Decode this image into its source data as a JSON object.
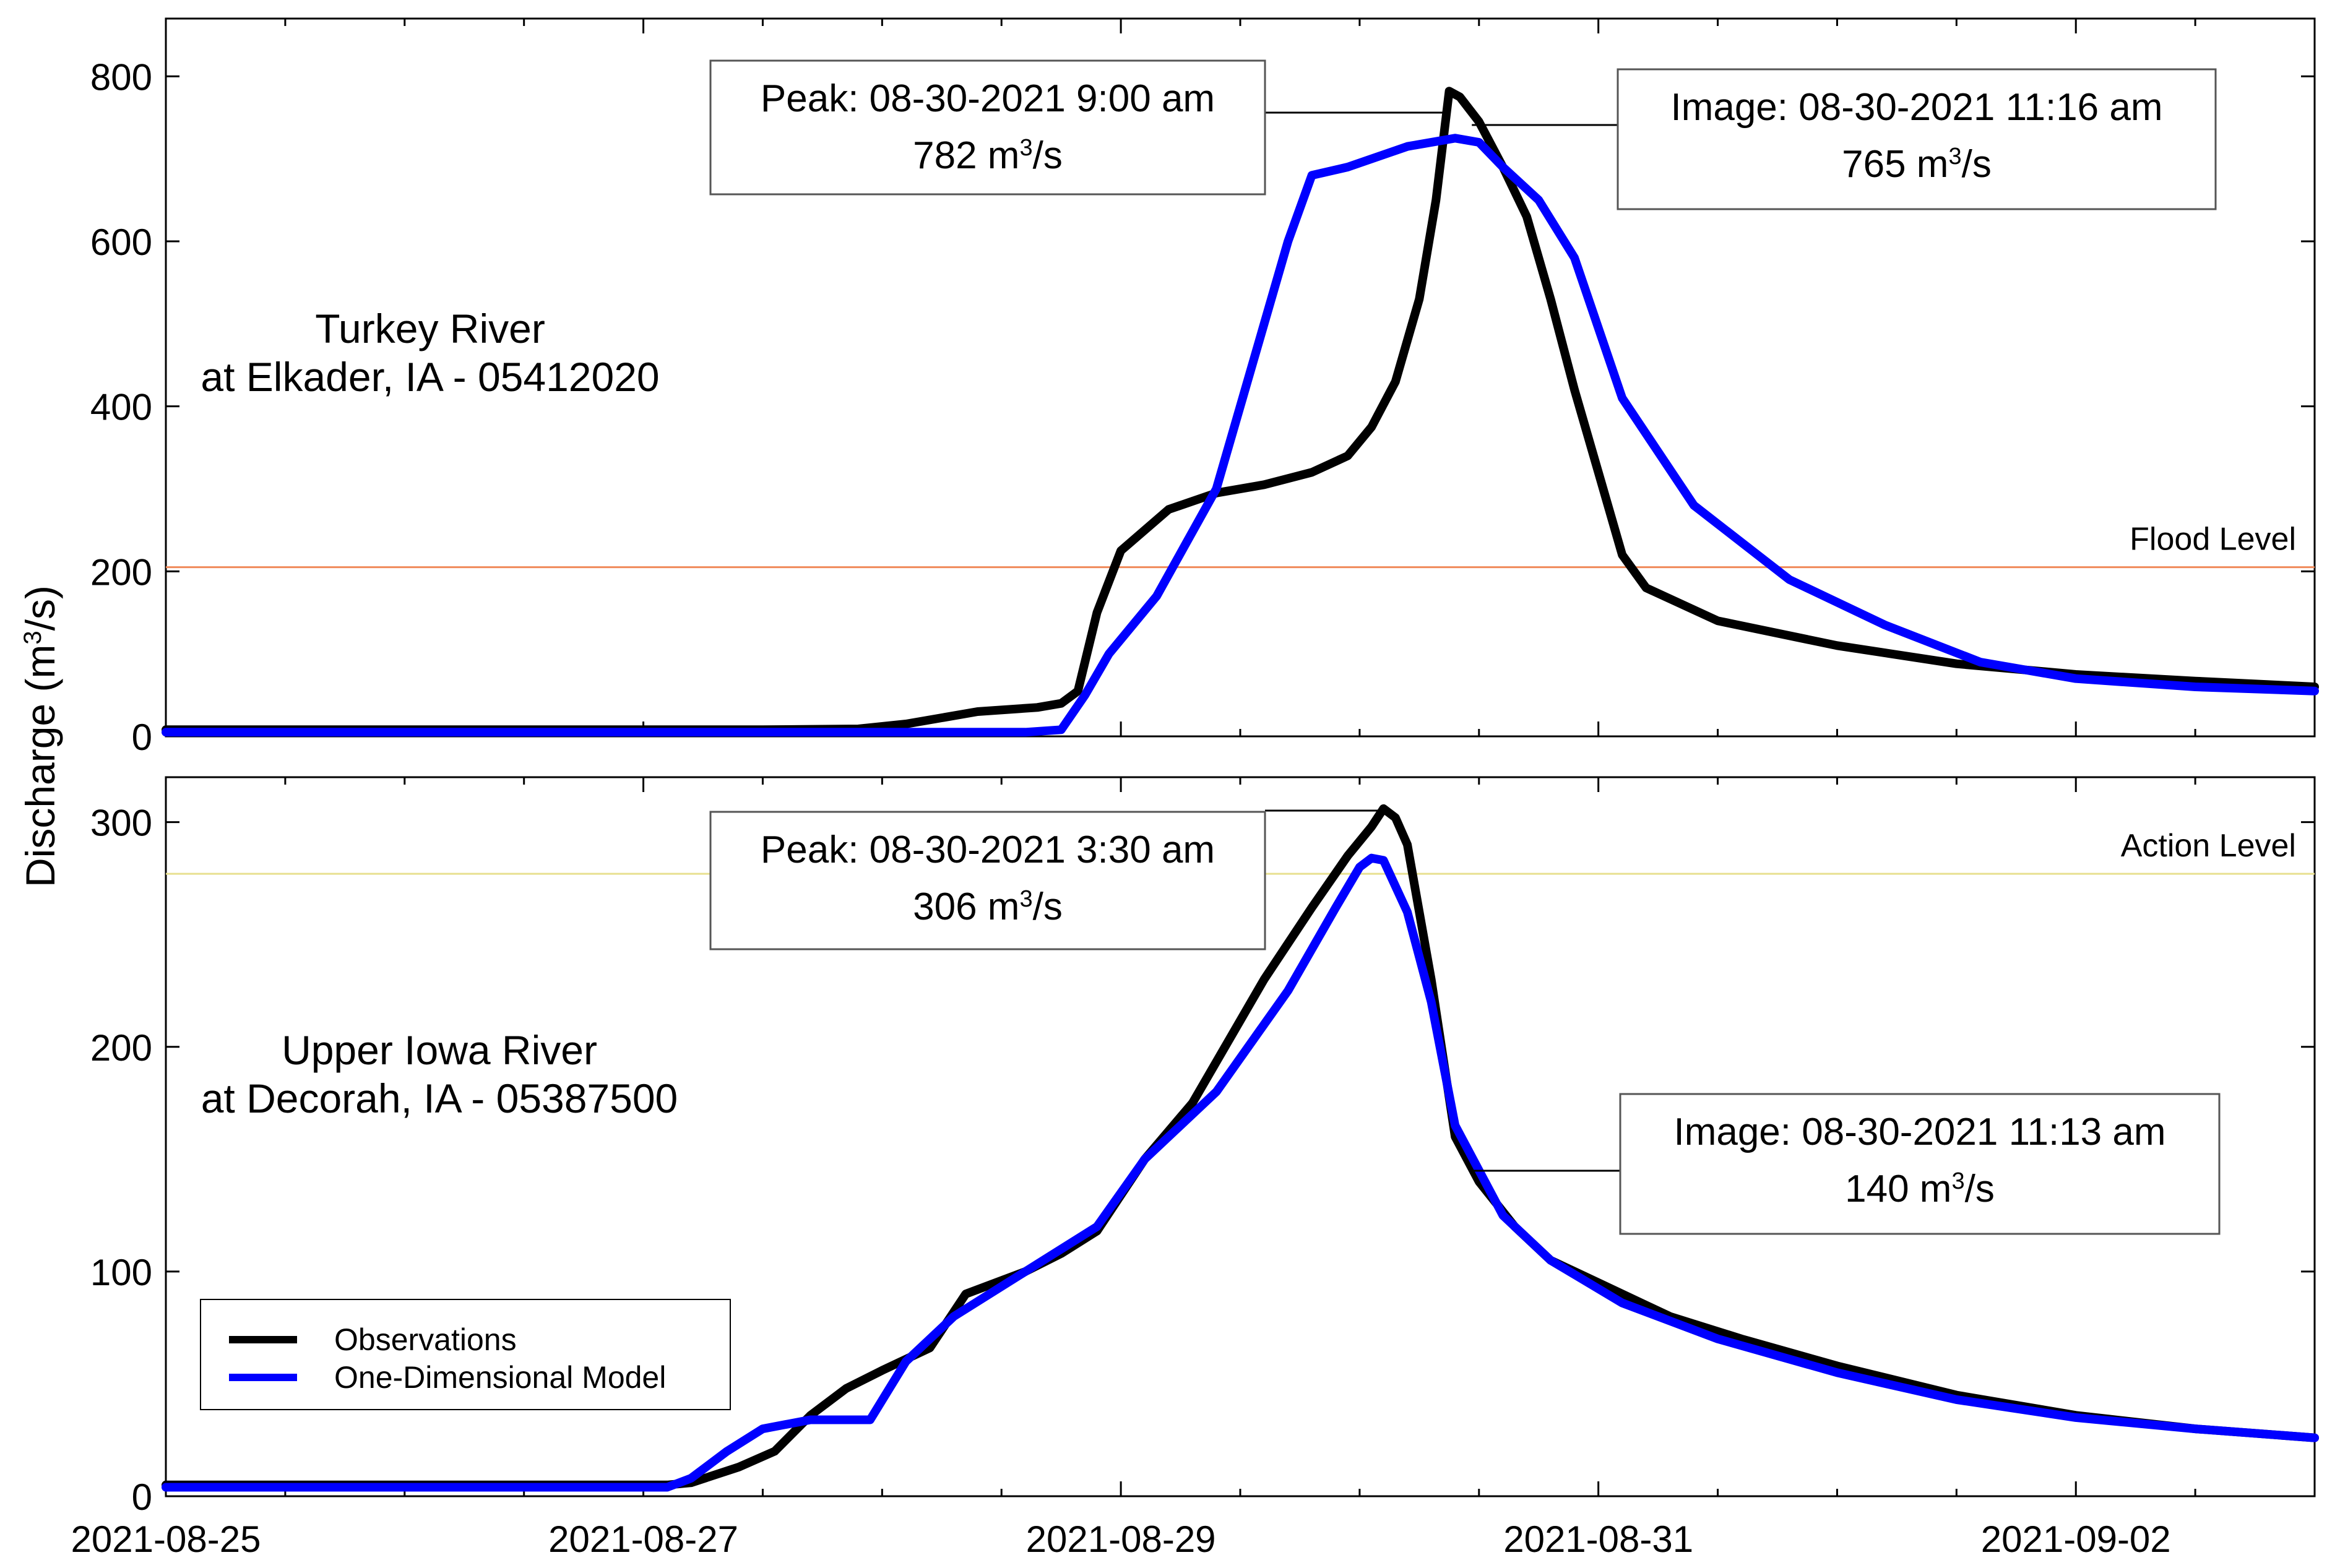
{
  "figure": {
    "ylabel_prefix": "Discharge (m",
    "ylabel_sup": "3",
    "ylabel_suffix": "/s)",
    "x_tick_labels": [
      "2021-08-25",
      "2021-08-27",
      "2021-08-29",
      "2021-08-31",
      "2021-09-02"
    ]
  },
  "legend": {
    "items": [
      {
        "label": "Observations",
        "color": "#000000"
      },
      {
        "label": "One-Dimensional Model",
        "color": "#0000ff"
      }
    ]
  },
  "chart_data": [
    {
      "type": "line",
      "title_line1": "Turkey River",
      "title_line2": "at Elkader, IA - 05412020",
      "x_unit": "days since 2021-08-25 00:00",
      "xlim": [
        0,
        9.0
      ],
      "ylim": [
        0,
        870
      ],
      "yticks": [
        0,
        200,
        400,
        600,
        800
      ],
      "level": {
        "label": "Flood Level",
        "value": 205,
        "color": "#f08a5a"
      },
      "peak": {
        "label": "Peak: 08-30-2021  9:00 am",
        "value_num": "782 m",
        "value_sup": "3",
        "value_unit": "/s",
        "x": 5.375,
        "y": 782
      },
      "image": {
        "label": "Image: 08-30-2021  11:16 am",
        "value_num": "765 m",
        "value_sup": "3",
        "value_unit": "/s",
        "x": 5.47,
        "y": 765
      },
      "series": [
        {
          "name": "Observations",
          "color": "#000000",
          "x": [
            0,
            1,
            2,
            2.5,
            2.9,
            3.1,
            3.4,
            3.65,
            3.75,
            3.82,
            3.9,
            4.0,
            4.2,
            4.4,
            4.6,
            4.8,
            4.95,
            5.05,
            5.15,
            5.25,
            5.32,
            5.375,
            5.42,
            5.5,
            5.6,
            5.7,
            5.8,
            5.9,
            6.0,
            6.1,
            6.2,
            6.5,
            7.0,
            7.5,
            8.0,
            8.5,
            9.0
          ],
          "y": [
            8,
            8,
            8,
            8,
            9,
            15,
            30,
            35,
            40,
            55,
            150,
            225,
            275,
            295,
            305,
            320,
            340,
            375,
            430,
            530,
            650,
            782,
            775,
            745,
            690,
            630,
            530,
            420,
            320,
            220,
            180,
            140,
            110,
            88,
            75,
            67,
            60
          ]
        },
        {
          "name": "One-Dimensional Model",
          "color": "#0000ff",
          "x": [
            0,
            2.5,
            3.6,
            3.75,
            3.85,
            3.95,
            4.15,
            4.4,
            4.7,
            4.8,
            4.95,
            5.2,
            5.4,
            5.5,
            5.6,
            5.75,
            5.9,
            6.1,
            6.4,
            6.8,
            7.2,
            7.6,
            8.0,
            8.5,
            9.0
          ],
          "y": [
            5,
            5,
            5,
            8,
            50,
            100,
            170,
            300,
            600,
            680,
            690,
            715,
            725,
            720,
            690,
            650,
            580,
            410,
            280,
            190,
            135,
            90,
            70,
            60,
            55
          ]
        }
      ]
    },
    {
      "type": "line",
      "title_line1": "Upper Iowa River",
      "title_line2": "at Decorah, IA - 05387500",
      "x_unit": "days since 2021-08-25 00:00",
      "xlim": [
        0,
        9.0
      ],
      "ylim": [
        0,
        320
      ],
      "yticks": [
        0,
        100,
        200,
        300
      ],
      "level": {
        "label": "Action Level",
        "value": 277,
        "color": "#e8e090"
      },
      "peak": {
        "label": "Peak: 08-30-2021  3:30 am",
        "value_num": "306 m",
        "value_sup": "3",
        "value_unit": "/s",
        "x": 5.1,
        "y": 306
      },
      "image": {
        "label": "Image: 08-30-2021  11:13 am",
        "value_num": "140 m",
        "value_sup": "3",
        "value_unit": "/s",
        "x": 5.47,
        "y": 140
      },
      "series": [
        {
          "name": "Observations",
          "color": "#000000",
          "x": [
            0,
            1,
            2,
            2.1,
            2.2,
            2.4,
            2.55,
            2.7,
            2.85,
            3.0,
            3.2,
            3.35,
            3.6,
            3.75,
            3.9,
            4.1,
            4.3,
            4.6,
            4.8,
            4.95,
            5.05,
            5.1,
            5.15,
            5.2,
            5.3,
            5.4,
            5.5,
            5.65,
            5.8,
            6.0,
            6.3,
            6.6,
            7.0,
            7.5,
            8.0,
            8.5,
            9.0
          ],
          "y": [
            5,
            5,
            5,
            5,
            6,
            13,
            20,
            36,
            48,
            56,
            66,
            90,
            100,
            108,
            118,
            150,
            175,
            230,
            262,
            285,
            298,
            306,
            302,
            290,
            230,
            160,
            140,
            120,
            105,
            95,
            80,
            70,
            58,
            45,
            36,
            30,
            26
          ]
        },
        {
          "name": "One-Dimensional Model",
          "color": "#0000ff",
          "x": [
            0,
            2.1,
            2.2,
            2.35,
            2.5,
            2.7,
            2.95,
            3.1,
            3.3,
            3.6,
            3.9,
            4.1,
            4.4,
            4.7,
            4.9,
            5.0,
            5.05,
            5.1,
            5.2,
            5.3,
            5.4,
            5.6,
            5.8,
            6.1,
            6.5,
            7.0,
            7.5,
            8.0,
            8.5,
            9.0
          ],
          "y": [
            4,
            4,
            8,
            20,
            30,
            34,
            34,
            60,
            80,
            100,
            120,
            150,
            180,
            225,
            262,
            280,
            284,
            283,
            260,
            220,
            165,
            125,
            105,
            86,
            70,
            55,
            43,
            35,
            30,
            26
          ]
        }
      ]
    }
  ]
}
